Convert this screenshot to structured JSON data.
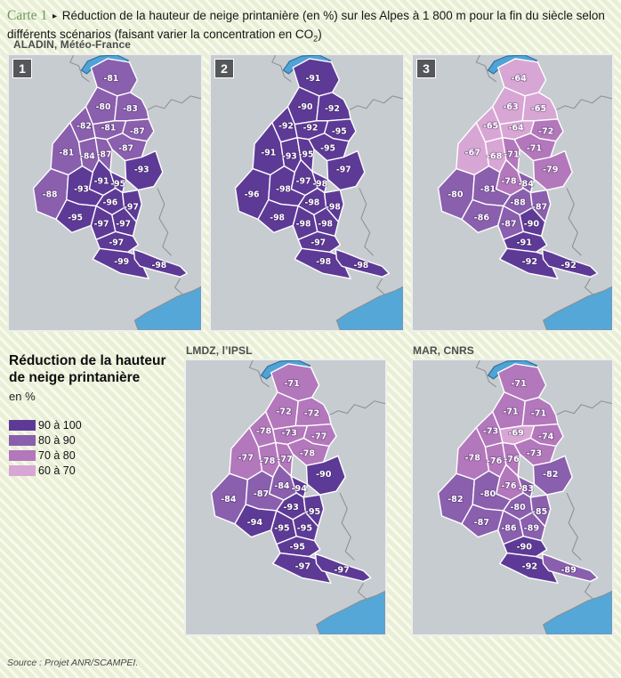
{
  "title": {
    "kicker": "Carte 1",
    "arrow_glyph": "▸",
    "text_a": "Réduction de la hauteur de neige printanière (en %) sur les Alpes à 1 800 m pour la fin du siècle selon différents scénarios (faisant varier la concentration en CO",
    "sub": "2",
    "text_b": ")"
  },
  "legend": {
    "title_line1": "Réduction de la hauteur",
    "title_line2": "de neige printanière",
    "unit": "en %"
  },
  "source": {
    "text": "Source : Projet ANR/SCAMPEI."
  },
  "chart_data": {
    "type": "choropleth",
    "description": "Five maps of the French Alps massifs showing spring snow depth reduction (%) at 1800 m, end of century",
    "region_count": 23,
    "classes": [
      {
        "label": "90 à 100",
        "min": 90,
        "color": "#5e3a97"
      },
      {
        "label": "80 à 90",
        "min": 80,
        "color": "#8a5fad"
      },
      {
        "label": "70 à 80",
        "min": 70,
        "color": "#b377bb"
      },
      {
        "label": "60 à 70",
        "min": 60,
        "color": "#d8a6d4"
      }
    ],
    "map_background": "#c7ccd1",
    "water_color": "#55a7d8",
    "maps": [
      {
        "id": "scenario-1",
        "badge": "1",
        "model": "ALADIN, Météo-France",
        "values": [
          -81,
          -80,
          -83,
          -82,
          -81,
          -87,
          -87,
          -81,
          -84,
          -87,
          -93,
          -91,
          -95,
          -88,
          -93,
          -96,
          -97,
          -95,
          -97,
          -97,
          -97,
          -99,
          -98
        ]
      },
      {
        "id": "scenario-2",
        "badge": "2",
        "model": "ALADIN, Météo-France",
        "values": [
          -91,
          -90,
          -92,
          -92,
          -92,
          -95,
          -95,
          -91,
          -93,
          -95,
          -97,
          -97,
          -98,
          -96,
          -98,
          -98,
          -98,
          -98,
          -98,
          -98,
          -97,
          -98,
          -98
        ]
      },
      {
        "id": "scenario-3",
        "badge": "3",
        "model": "ALADIN, Météo-France",
        "values": [
          -64,
          -63,
          -65,
          -65,
          -64,
          -72,
          -71,
          -67,
          -68,
          -71,
          -79,
          -78,
          -84,
          -80,
          -81,
          -88,
          -87,
          -86,
          -87,
          -90,
          -91,
          -92,
          -92
        ]
      },
      {
        "id": "lmdz",
        "badge": "",
        "model": "LMDZ, l’IPSL",
        "values": [
          -71,
          -72,
          -72,
          -78,
          -73,
          -77,
          -78,
          -77,
          -78,
          -77,
          -90,
          -84,
          -94,
          -84,
          -87,
          -93,
          -95,
          -94,
          -95,
          -95,
          -95,
          -97,
          -97
        ]
      },
      {
        "id": "mar",
        "badge": "",
        "model": "MAR, CNRS",
        "values": [
          -71,
          -71,
          -71,
          -73,
          -69,
          -74,
          -73,
          -78,
          -76,
          -76,
          -82,
          -76,
          -83,
          -82,
          -80,
          -80,
          -85,
          -87,
          -86,
          -89,
          -90,
          -92,
          -89
        ]
      }
    ]
  }
}
